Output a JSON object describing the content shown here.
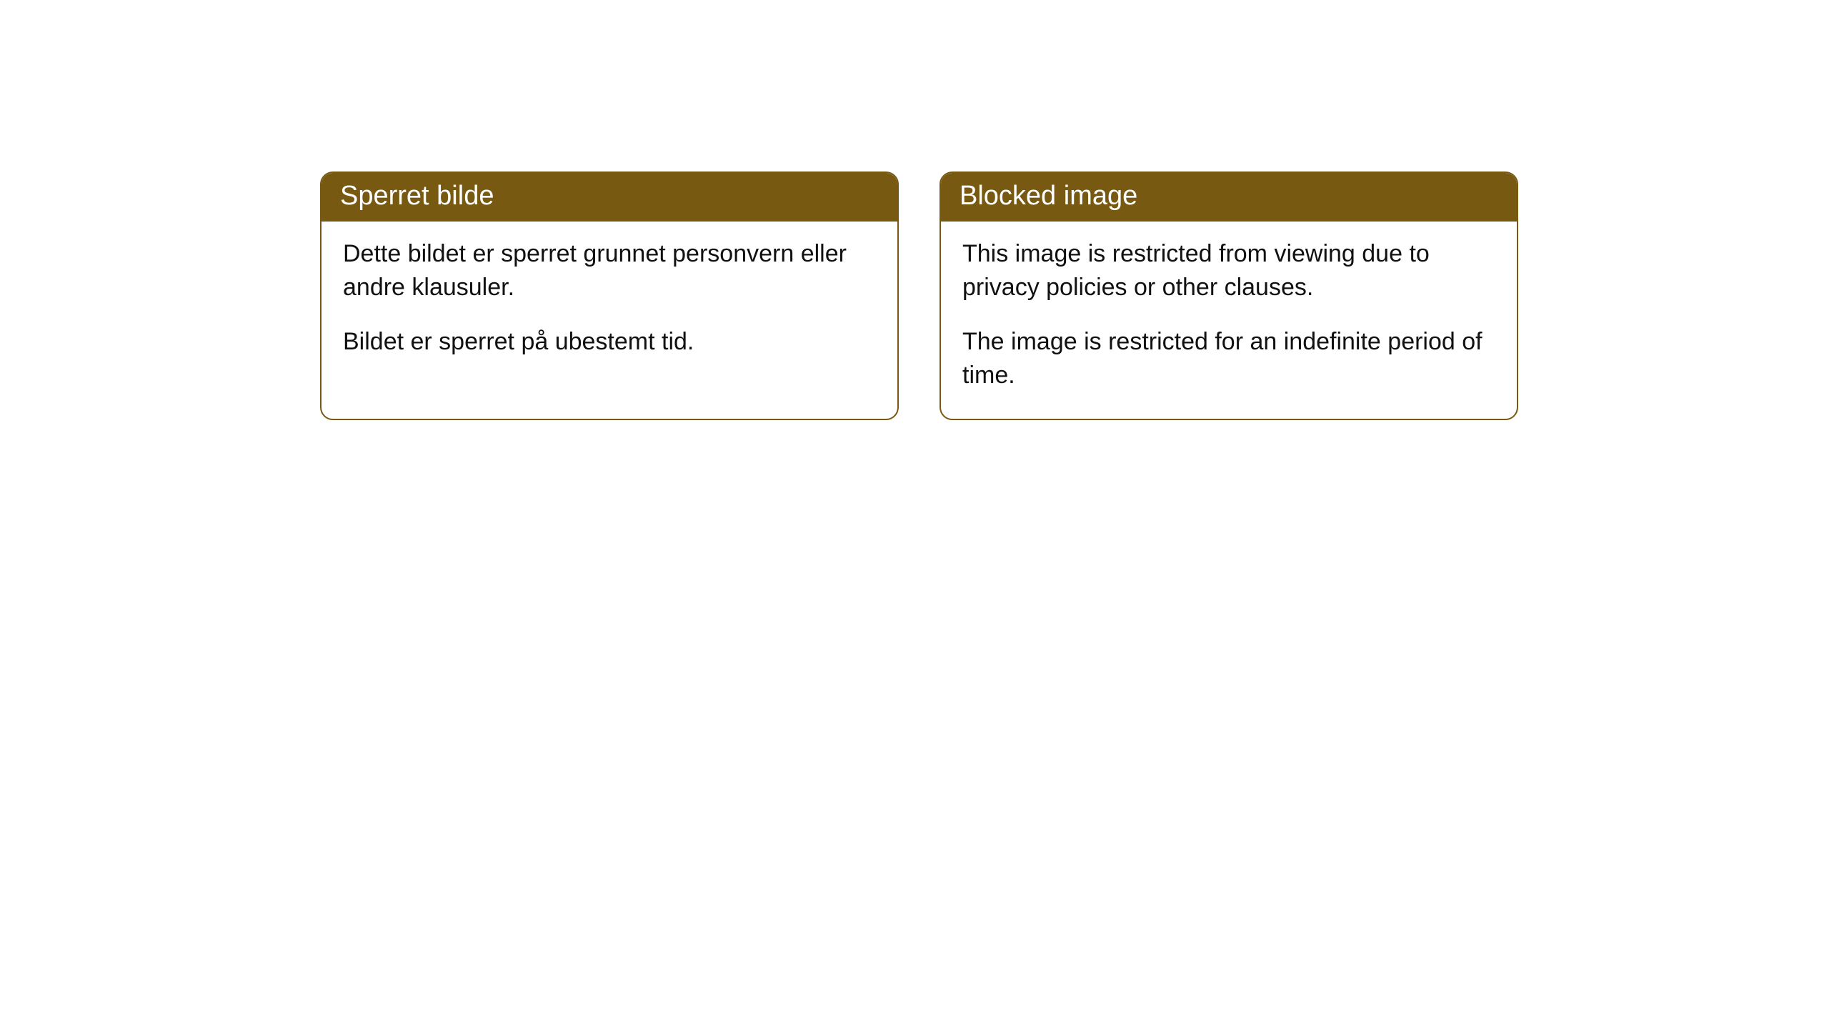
{
  "cards": [
    {
      "title": "Sperret bilde",
      "paragraph1": "Dette bildet er sperret grunnet personvern eller andre klausuler.",
      "paragraph2": "Bildet er sperret på ubestemt tid."
    },
    {
      "title": "Blocked image",
      "paragraph1": "This image is restricted from viewing due to privacy policies or other clauses.",
      "paragraph2": "The image is restricted for an indefinite period of time."
    }
  ],
  "style": {
    "header_bg": "#785912",
    "header_text_color": "#ffffff",
    "border_color": "#785912",
    "body_text_color": "#111111",
    "background_color": "#ffffff",
    "border_radius": 18,
    "header_fontsize": 38,
    "body_fontsize": 34
  }
}
